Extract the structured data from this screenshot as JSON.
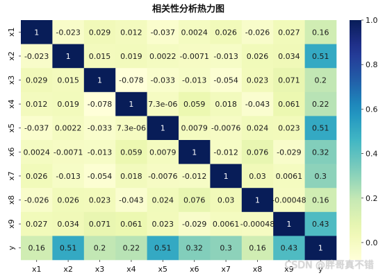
{
  "chart_data": {
    "type": "heatmap",
    "title": "相关性分析热力图",
    "row_labels": [
      "x1",
      "x2",
      "x3",
      "x4",
      "x5",
      "x6",
      "x7",
      "x8",
      "x9",
      "y"
    ],
    "col_labels": [
      "x1",
      "x2",
      "x3",
      "x4",
      "x5",
      "x6",
      "x7",
      "x8",
      "x9",
      "y"
    ],
    "values": [
      [
        1,
        -0.023,
        0.029,
        0.012,
        -0.037,
        0.0024,
        0.026,
        -0.026,
        0.027,
        0.16
      ],
      [
        -0.023,
        1,
        0.015,
        0.019,
        0.0022,
        -0.0071,
        -0.013,
        0.026,
        0.034,
        0.51
      ],
      [
        0.029,
        0.015,
        1,
        -0.078,
        -0.033,
        -0.013,
        -0.054,
        0.023,
        0.071,
        0.2
      ],
      [
        0.012,
        0.019,
        -0.078,
        1,
        7.3e-06,
        0.059,
        0.018,
        -0.043,
        0.061,
        0.22
      ],
      [
        -0.037,
        0.0022,
        -0.033,
        7.3e-06,
        1,
        0.0079,
        -0.0076,
        0.024,
        0.023,
        0.51
      ],
      [
        0.0024,
        -0.0071,
        -0.013,
        0.059,
        0.0079,
        1,
        -0.012,
        0.076,
        -0.029,
        0.32
      ],
      [
        0.026,
        -0.013,
        -0.054,
        0.018,
        -0.0076,
        -0.012,
        1,
        0.03,
        0.0061,
        0.3
      ],
      [
        -0.026,
        0.026,
        0.023,
        -0.043,
        0.024,
        0.076,
        0.03,
        1,
        -0.00048,
        0.16
      ],
      [
        0.027,
        0.034,
        0.071,
        0.061,
        0.023,
        -0.029,
        0.0061,
        -0.00048,
        1,
        0.43
      ],
      [
        0.16,
        0.51,
        0.2,
        0.22,
        0.51,
        0.32,
        0.3,
        0.16,
        0.43,
        1
      ]
    ],
    "annotations": [
      [
        "1",
        "-0.023",
        "0.029",
        "0.012",
        "-0.037",
        "0.0024",
        "0.026",
        "-0.026",
        "0.027",
        "0.16"
      ],
      [
        "-0.023",
        "1",
        "0.015",
        "0.019",
        "0.0022",
        "-0.0071",
        "-0.013",
        "0.026",
        "0.034",
        "0.51"
      ],
      [
        "0.029",
        "0.015",
        "1",
        "-0.078",
        "-0.033",
        "-0.013",
        "-0.054",
        "0.023",
        "0.071",
        "0.2"
      ],
      [
        "0.012",
        "0.019",
        "-0.078",
        "1",
        "7.3e-06",
        "0.059",
        "0.018",
        "-0.043",
        "0.061",
        "0.22"
      ],
      [
        "-0.037",
        "0.0022",
        "-0.033",
        "7.3e-06",
        "1",
        "0.0079",
        "-0.0076",
        "0.024",
        "0.023",
        "0.51"
      ],
      [
        "0.0024",
        "-0.0071",
        "-0.013",
        "0.059",
        "0.0079",
        "1",
        "-0.012",
        "0.076",
        "-0.029",
        "0.32"
      ],
      [
        "0.026",
        "-0.013",
        "-0.054",
        "0.018",
        "-0.0076",
        "-0.012",
        "1",
        "0.03",
        "0.0061",
        "0.3"
      ],
      [
        "-0.026",
        "0.026",
        "0.023",
        "-0.043",
        "0.024",
        "0.076",
        "0.03",
        "1",
        "-0.00048",
        "0.16"
      ],
      [
        "0.027",
        "0.034",
        "0.071",
        "0.061",
        "0.023",
        "-0.029",
        "0.0061",
        "-0.00048",
        "1",
        "0.43"
      ],
      [
        "0.16",
        "0.51",
        "0.2",
        "0.22",
        "0.51",
        "0.32",
        "0.3",
        "0.16",
        "0.43",
        "1"
      ]
    ],
    "colormap": "YlGnBu",
    "colorbar": {
      "range": [
        -0.078,
        1.0
      ],
      "ticks": [
        0.0,
        0.2,
        0.4,
        0.6,
        0.8,
        1.0
      ],
      "tick_labels": [
        "0.0",
        "0.2",
        "0.4",
        "0.6",
        "0.8",
        "1.0"
      ]
    },
    "xlabel": "",
    "ylabel": ""
  },
  "watermark": "CSDN @胖哥真不错"
}
